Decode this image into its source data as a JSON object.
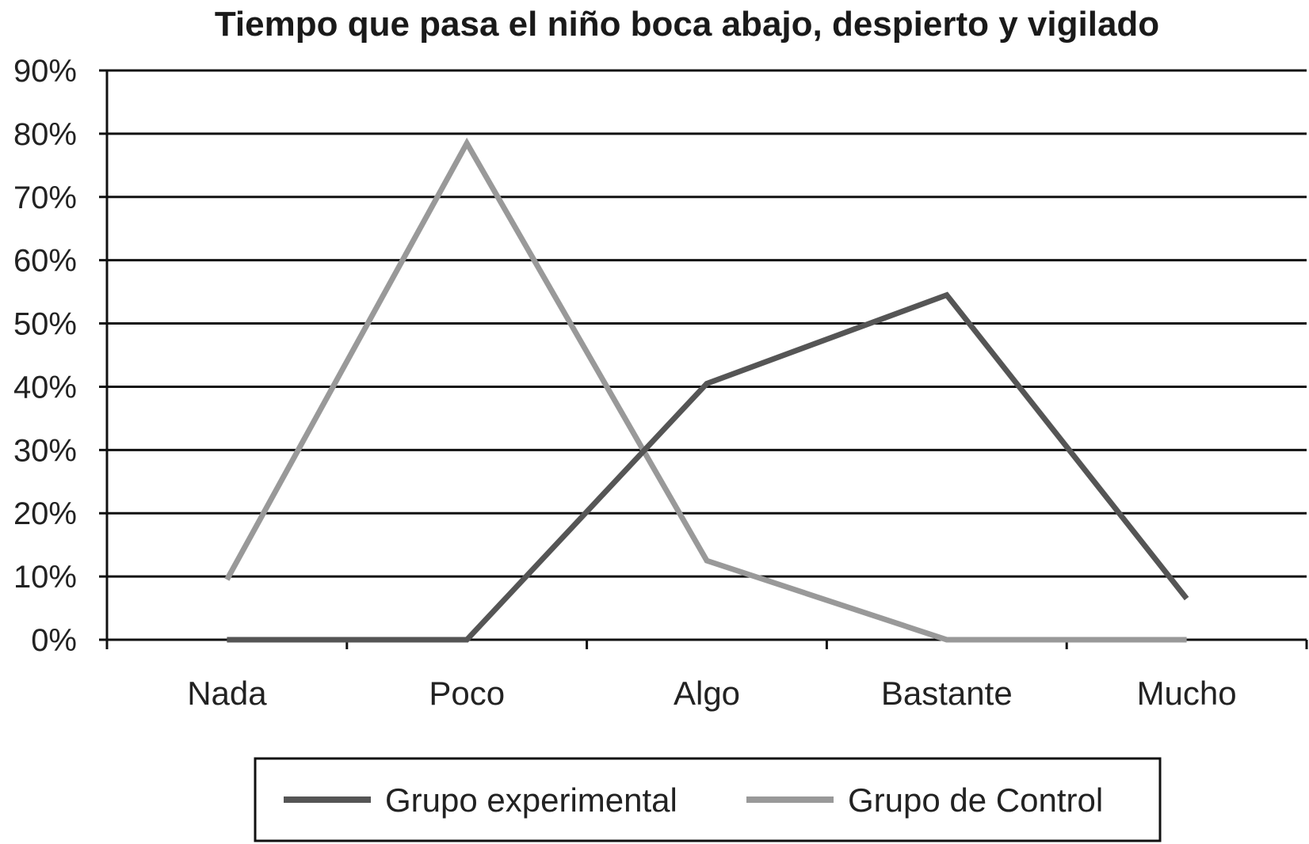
{
  "chart_data": {
    "type": "line",
    "title": "Tiempo que pasa el niño boca abajo, despierto y vigilado",
    "xlabel": "",
    "ylabel": "",
    "categories": [
      "Nada",
      "Poco",
      "Algo",
      "Bastante",
      "Mucho"
    ],
    "ylim": [
      0,
      90
    ],
    "yticks": [
      "0%",
      "10%",
      "20%",
      "30%",
      "40%",
      "50%",
      "60%",
      "70%",
      "80%",
      "90%"
    ],
    "grid": true,
    "legend_position": "bottom",
    "series": [
      {
        "name": "Grupo experimental",
        "values": [
          0,
          0,
          40.5,
          54.5,
          6.5
        ],
        "color": "#555555"
      },
      {
        "name": "Grupo de Control",
        "values": [
          9.5,
          78.5,
          12.5,
          0,
          0
        ],
        "color": "#999999"
      }
    ]
  }
}
